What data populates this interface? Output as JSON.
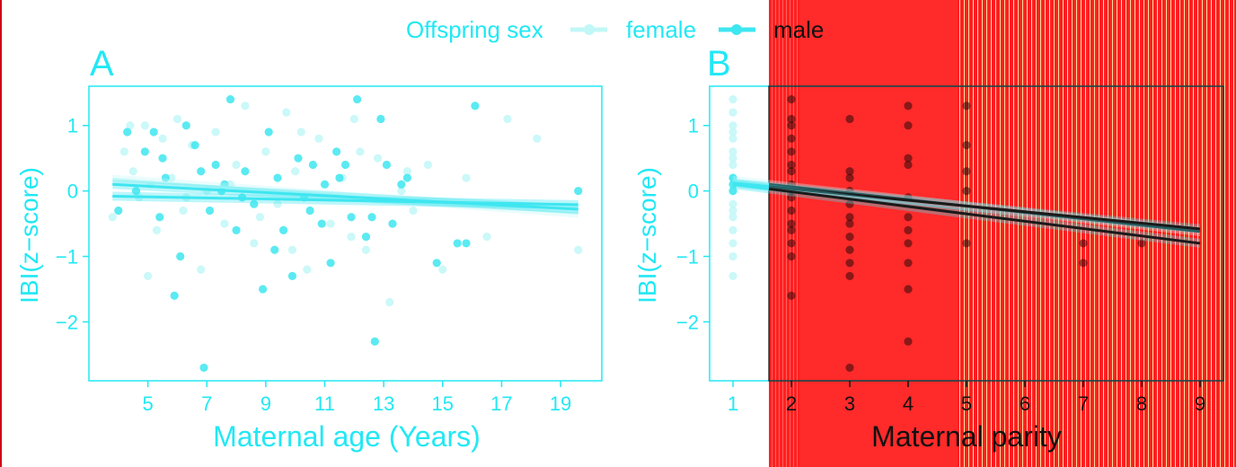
{
  "legend": {
    "title": "Offspring sex",
    "items": [
      {
        "label": "female",
        "color": "#c2f7f7"
      },
      {
        "label": "male",
        "color": "#3ee6f0"
      }
    ]
  },
  "colors": {
    "accent": "#22e8f4",
    "background": "#ffffff",
    "overlay_red": "#ff2a2a"
  },
  "chart_data": [
    {
      "type": "scatter",
      "panel_label": "A",
      "xlabel": "Maternal age (Years)",
      "ylabel": "IBI(z−score)",
      "xlim": [
        3.0,
        20.4
      ],
      "ylim": [
        -2.9,
        1.6
      ],
      "xticks": [
        5,
        7,
        9,
        11,
        13,
        15,
        17,
        19
      ],
      "xtick_labels": [
        "5",
        "7",
        "9",
        "11",
        "13",
        "15",
        "17",
        "19"
      ],
      "yticks": [
        1,
        0,
        -1,
        -2
      ],
      "ytick_labels": [
        "1",
        "0",
        "−1",
        "−2"
      ],
      "grid": false,
      "legend_position": "top",
      "series": [
        {
          "name": "female",
          "points": [
            [
              3.8,
              -0.4
            ],
            [
              4.2,
              0.6
            ],
            [
              4.5,
              0.3
            ],
            [
              4.7,
              -0.1
            ],
            [
              4.9,
              1.0
            ],
            [
              5.1,
              0.1
            ],
            [
              5.3,
              -0.6
            ],
            [
              5.5,
              0.8
            ],
            [
              5.8,
              0.2
            ],
            [
              6.0,
              1.1
            ],
            [
              6.2,
              -0.3
            ],
            [
              6.5,
              0.7
            ],
            [
              6.8,
              -1.2
            ],
            [
              7.0,
              0.0
            ],
            [
              7.3,
              0.9
            ],
            [
              7.6,
              -0.5
            ],
            [
              8.0,
              0.4
            ],
            [
              8.3,
              1.3
            ],
            [
              8.6,
              -0.8
            ],
            [
              9.0,
              0.6
            ],
            [
              9.4,
              -0.2
            ],
            [
              9.7,
              1.2
            ],
            [
              10.0,
              0.3
            ],
            [
              10.4,
              -1.2
            ],
            [
              10.8,
              0.8
            ],
            [
              11.2,
              -0.5
            ],
            [
              11.6,
              0.2
            ],
            [
              12.0,
              1.1
            ],
            [
              12.4,
              -0.9
            ],
            [
              12.8,
              0.5
            ],
            [
              13.2,
              -1.7
            ],
            [
              13.6,
              0.0
            ],
            [
              14.0,
              -0.3
            ],
            [
              14.5,
              0.4
            ],
            [
              15.0,
              -1.2
            ],
            [
              15.8,
              0.2
            ],
            [
              16.5,
              -0.7
            ],
            [
              17.2,
              1.1
            ],
            [
              18.2,
              0.8
            ],
            [
              19.6,
              -0.9
            ],
            [
              5.0,
              -1.3
            ],
            [
              6.3,
              -0.1
            ],
            [
              8.8,
              -0.4
            ],
            [
              10.2,
              0.9
            ],
            [
              11.9,
              -0.7
            ],
            [
              13.8,
              0.3
            ],
            [
              7.8,
              0.1
            ],
            [
              9.9,
              -0.9
            ],
            [
              12.2,
              0.6
            ],
            [
              4.4,
              1.0
            ]
          ]
        },
        {
          "name": "male",
          "points": [
            [
              4.0,
              -0.3
            ],
            [
              4.3,
              0.9
            ],
            [
              4.6,
              0.0
            ],
            [
              4.9,
              0.6
            ],
            [
              5.2,
              0.9
            ],
            [
              5.4,
              -0.4
            ],
            [
              5.6,
              0.2
            ],
            [
              5.9,
              -1.6
            ],
            [
              6.1,
              -1.0
            ],
            [
              6.3,
              1.0
            ],
            [
              6.6,
              0.7
            ],
            [
              6.9,
              -2.7
            ],
            [
              7.1,
              -0.3
            ],
            [
              7.3,
              0.4
            ],
            [
              7.6,
              0.1
            ],
            [
              7.8,
              1.4
            ],
            [
              8.0,
              -0.6
            ],
            [
              8.3,
              0.3
            ],
            [
              8.6,
              -0.2
            ],
            [
              8.9,
              -1.5
            ],
            [
              9.1,
              0.9
            ],
            [
              9.4,
              0.2
            ],
            [
              9.6,
              -0.6
            ],
            [
              9.9,
              -1.3
            ],
            [
              10.1,
              0.5
            ],
            [
              10.3,
              -0.1
            ],
            [
              10.6,
              0.4
            ],
            [
              10.9,
              -0.5
            ],
            [
              11.2,
              -1.1
            ],
            [
              11.4,
              0.6
            ],
            [
              11.7,
              0.4
            ],
            [
              11.9,
              -0.4
            ],
            [
              12.1,
              1.4
            ],
            [
              12.4,
              -0.7
            ],
            [
              12.7,
              -2.3
            ],
            [
              12.9,
              1.1
            ],
            [
              13.1,
              0.4
            ],
            [
              13.3,
              -0.5
            ],
            [
              13.6,
              0.1
            ],
            [
              14.8,
              -1.1
            ],
            [
              15.5,
              -0.8
            ],
            [
              16.1,
              1.3
            ],
            [
              19.6,
              0.0
            ],
            [
              6.8,
              0.3
            ],
            [
              8.2,
              -0.1
            ],
            [
              10.5,
              -0.3
            ],
            [
              11.0,
              0.1
            ],
            [
              12.6,
              -0.4
            ],
            [
              13.8,
              0.2
            ],
            [
              15.8,
              -0.8
            ],
            [
              7.5,
              0.0
            ],
            [
              9.3,
              -0.9
            ],
            [
              11.5,
              0.2
            ],
            [
              5.5,
              0.5
            ]
          ]
        }
      ],
      "trend_lines": [
        {
          "name": "female",
          "x": [
            3.8,
            19.6
          ],
          "y": [
            0.18,
            -0.34
          ]
        },
        {
          "name": "male",
          "x": [
            3.8,
            19.6
          ],
          "y": [
            0.1,
            -0.28
          ]
        },
        {
          "name": "male",
          "x": [
            3.8,
            19.6
          ],
          "y": [
            -0.08,
            -0.21
          ]
        }
      ]
    },
    {
      "type": "scatter",
      "panel_label": "B",
      "xlabel": "Maternal parity",
      "ylabel": "IBI(z−score)",
      "xlim": [
        0.6,
        9.4
      ],
      "ylim": [
        -2.9,
        1.6
      ],
      "xticks": [
        1,
        2,
        3,
        4,
        5,
        6,
        7,
        8,
        9
      ],
      "xtick_labels": [
        "1",
        "2",
        "3",
        "4",
        "5",
        "6",
        "7",
        "8",
        "9"
      ],
      "yticks": [
        1,
        0,
        -1,
        -2
      ],
      "ytick_labels": [
        "1",
        "0",
        "−1",
        "−2"
      ],
      "grid": false,
      "series": [
        {
          "name": "female",
          "points": [
            [
              1,
              1.4
            ],
            [
              1,
              1.2
            ],
            [
              1,
              1.0
            ],
            [
              1,
              0.8
            ],
            [
              1,
              0.6
            ],
            [
              1,
              0.4
            ],
            [
              1,
              0.2
            ],
            [
              1,
              0.0
            ],
            [
              1,
              -0.2
            ],
            [
              1,
              -0.4
            ],
            [
              1,
              -0.6
            ],
            [
              1,
              -0.8
            ],
            [
              1,
              -1.0
            ],
            [
              1,
              -1.3
            ],
            [
              1,
              0.9
            ],
            [
              1,
              0.5
            ],
            [
              1,
              0.1
            ],
            [
              1,
              -0.3
            ]
          ]
        },
        {
          "name": "male",
          "points": [
            [
              2,
              1.4
            ],
            [
              2,
              1.1
            ],
            [
              2,
              1.0
            ],
            [
              2,
              0.8
            ],
            [
              2,
              0.6
            ],
            [
              2,
              0.4
            ],
            [
              2,
              0.3
            ],
            [
              2,
              0.1
            ],
            [
              2,
              0.0
            ],
            [
              2,
              -0.1
            ],
            [
              2,
              -0.3
            ],
            [
              2,
              -0.5
            ],
            [
              2,
              -0.6
            ],
            [
              2,
              -0.8
            ],
            [
              2,
              -1.0
            ],
            [
              2,
              -1.6
            ],
            [
              3,
              1.1
            ],
            [
              3,
              0.3
            ],
            [
              3,
              0.2
            ],
            [
              3,
              0.0
            ],
            [
              3,
              -0.2
            ],
            [
              3,
              -0.4
            ],
            [
              3,
              -0.5
            ],
            [
              3,
              -0.7
            ],
            [
              3,
              -0.9
            ],
            [
              3,
              -1.1
            ],
            [
              3,
              -1.3
            ],
            [
              3,
              -2.7
            ],
            [
              4,
              1.3
            ],
            [
              4,
              1.0
            ],
            [
              4,
              0.5
            ],
            [
              4,
              0.4
            ],
            [
              4,
              -0.1
            ],
            [
              4,
              -0.4
            ],
            [
              4,
              -0.6
            ],
            [
              4,
              -0.8
            ],
            [
              4,
              -1.1
            ],
            [
              4,
              -1.5
            ],
            [
              4,
              -2.3
            ],
            [
              5,
              1.3
            ],
            [
              5,
              0.7
            ],
            [
              5,
              0.3
            ],
            [
              5,
              0.0
            ],
            [
              5,
              -0.8
            ],
            [
              7,
              -0.8
            ],
            [
              7,
              -1.1
            ],
            [
              8,
              -0.8
            ],
            [
              1,
              0.1
            ],
            [
              1,
              0.0
            ],
            [
              1,
              0.2
            ]
          ]
        }
      ],
      "trend_lines": [
        {
          "name": "female",
          "x": [
            1,
            9
          ],
          "y": [
            0.16,
            -0.62
          ]
        },
        {
          "name": "male",
          "x": [
            1,
            9
          ],
          "y": [
            0.12,
            -0.58
          ]
        },
        {
          "name": "male",
          "x": [
            1,
            9
          ],
          "y": [
            0.1,
            -0.8
          ]
        }
      ]
    }
  ]
}
